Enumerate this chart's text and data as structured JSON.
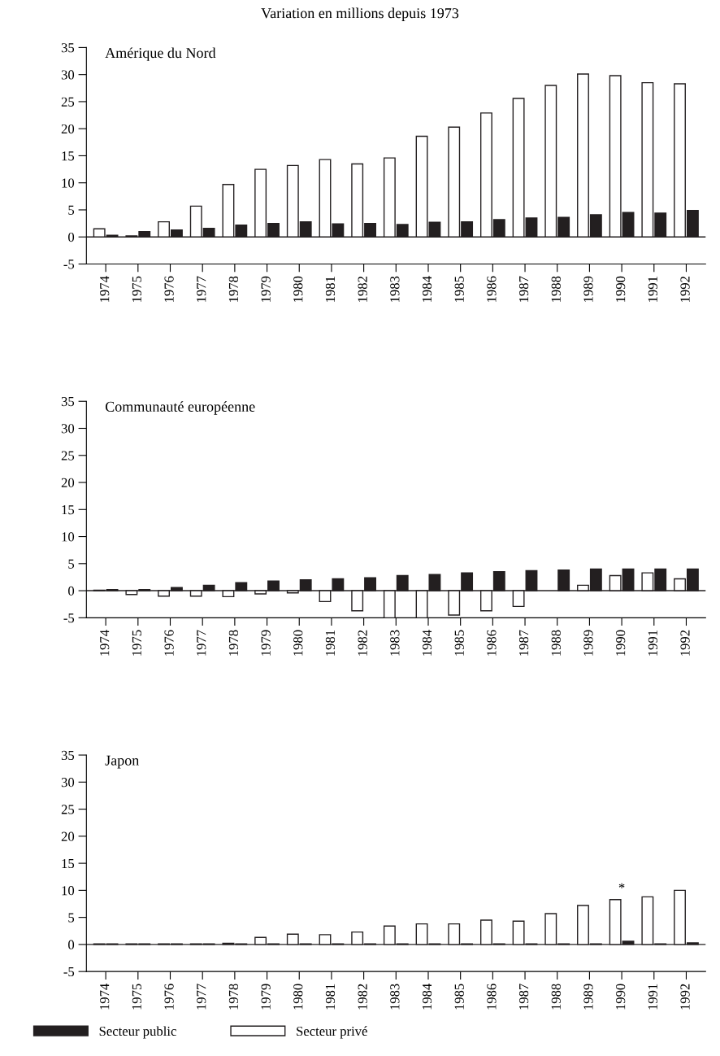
{
  "chart_data": [
    {
      "type": "bar",
      "title": "Amérique du Nord",
      "annotations": [
        "Variation en millions depuis 1973"
      ],
      "categories": [
        "1974",
        "1975",
        "1976",
        "1977",
        "1978",
        "1979",
        "1980",
        "1981",
        "1982",
        "1983",
        "1984",
        "1985",
        "1986",
        "1987",
        "1988",
        "1989",
        "1990",
        "1991",
        "1992"
      ],
      "series": [
        {
          "color": "#ffffff",
          "values": [
            1.5,
            0.2,
            2.8,
            5.7,
            9.7,
            12.5,
            13.2,
            14.3,
            13.5,
            14.6,
            18.6,
            20.3,
            22.9,
            25.6,
            28.0,
            30.1,
            29.8,
            28.5,
            28.3
          ]
        },
        {
          "color": "#231f20",
          "values": [
            0.3,
            1.0,
            1.3,
            1.6,
            2.2,
            2.5,
            2.8,
            2.4,
            2.5,
            2.3,
            2.7,
            2.8,
            3.2,
            3.5,
            3.6,
            4.1,
            4.5,
            4.4,
            4.9
          ]
        }
      ],
      "ylim": [
        -5,
        35
      ],
      "yticks": [
        -5,
        0,
        5,
        10,
        15,
        20,
        25,
        30,
        35
      ],
      "ref_lines": [
        {
          "axis": "y",
          "value": 0
        }
      ],
      "grid": false
    },
    {
      "type": "bar",
      "title": "Communauté européenne",
      "categories": [
        "1974",
        "1975",
        "1976",
        "1977",
        "1978",
        "1979",
        "1980",
        "1981",
        "1982",
        "1983",
        "1984",
        "1985",
        "1986",
        "1987",
        "1988",
        "1989",
        "1990",
        "1991",
        "1992"
      ],
      "series": [
        {
          "color": "#ffffff",
          "values": [
            0.1,
            -0.7,
            -1.0,
            -1.0,
            -1.1,
            -0.6,
            -0.4,
            -2.0,
            -3.7,
            -5.0,
            -5.0,
            -4.5,
            -3.7,
            -2.9,
            null,
            1.0,
            2.8,
            3.3,
            2.2
          ]
        },
        {
          "color": "#231f20",
          "values": [
            0.2,
            0.2,
            0.6,
            1.0,
            1.5,
            1.8,
            2.0,
            2.2,
            2.4,
            2.8,
            3.0,
            3.3,
            3.5,
            3.7,
            3.8,
            4.0,
            4.0,
            4.0,
            4.0
          ]
        }
      ],
      "ylim": [
        -5,
        35
      ],
      "yticks": [
        -5,
        0,
        5,
        10,
        15,
        20,
        25,
        30,
        35
      ],
      "ref_lines": [
        {
          "axis": "y",
          "value": 0
        }
      ],
      "grid": false
    },
    {
      "type": "bar",
      "title": "Japon",
      "annotations": [
        {
          "text": "*",
          "x": "1990",
          "y": 8.3
        }
      ],
      "categories": [
        "1974",
        "1975",
        "1976",
        "1977",
        "1978",
        "1979",
        "1980",
        "1981",
        "1982",
        "1983",
        "1984",
        "1985",
        "1986",
        "1987",
        "1988",
        "1989",
        "1990",
        "1991",
        "1992"
      ],
      "series": [
        {
          "name": "Secteur privé",
          "color": "#ffffff",
          "values": [
            0.1,
            0.1,
            0.1,
            0.1,
            0.2,
            1.3,
            1.9,
            1.8,
            2.3,
            3.4,
            3.8,
            3.8,
            4.5,
            4.3,
            5.7,
            7.2,
            8.3,
            8.8,
            10.0
          ]
        },
        {
          "name": "Secteur public",
          "color": "#231f20",
          "values": [
            0.1,
            0.1,
            0.1,
            0.1,
            0.1,
            0.1,
            0.1,
            0.1,
            0.1,
            0.1,
            0.1,
            0.1,
            0.1,
            0.1,
            0.1,
            0.1,
            0.6,
            0.1,
            0.3
          ]
        }
      ],
      "ylim": [
        -5,
        35
      ],
      "yticks": [
        -5,
        0,
        5,
        10,
        15,
        20,
        25,
        30,
        35
      ],
      "ref_lines": [
        {
          "axis": "y",
          "value": 0
        }
      ],
      "grid": false,
      "legend": "bottom"
    }
  ]
}
